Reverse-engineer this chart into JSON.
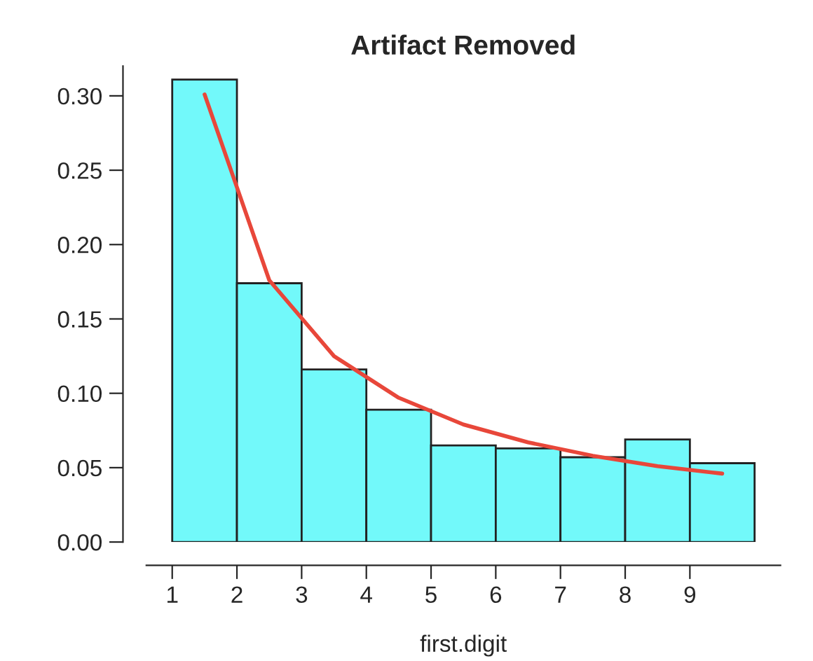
{
  "chart_data": {
    "type": "histogram",
    "title": "Artifact Removed",
    "xlabel": "first.digit",
    "bins": [
      1,
      2,
      3,
      4,
      5,
      6,
      7,
      8,
      9,
      10
    ],
    "values": [
      0.311,
      0.174,
      0.116,
      0.089,
      0.065,
      0.063,
      0.057,
      0.069,
      0.053
    ],
    "color": "#72f9fa",
    "series": [
      {
        "type": "line",
        "color": "#e8473a",
        "x": [
          1.5,
          2.5,
          3.5,
          4.5,
          5.5,
          6.5,
          7.5,
          8.5,
          9.5
        ],
        "values": [
          0.301,
          0.176,
          0.125,
          0.097,
          0.079,
          0.067,
          0.058,
          0.051,
          0.046
        ]
      }
    ],
    "xlim": [
      0.6,
      10.4
    ],
    "ylim": [
      0,
      0.32
    ],
    "xticks": [
      1,
      2,
      3,
      4,
      5,
      6,
      7,
      8,
      9
    ],
    "yticks": [
      {
        "value": 0,
        "label": "0.00"
      },
      {
        "value": 0.05,
        "label": "0.05"
      },
      {
        "value": 0.1,
        "label": "0.10"
      },
      {
        "value": 0.15,
        "label": "0.15"
      },
      {
        "value": 0.2,
        "label": "0.20"
      },
      {
        "value": 0.25,
        "label": "0.25"
      },
      {
        "value": 0.3,
        "label": "0.30"
      }
    ],
    "grid": false
  }
}
